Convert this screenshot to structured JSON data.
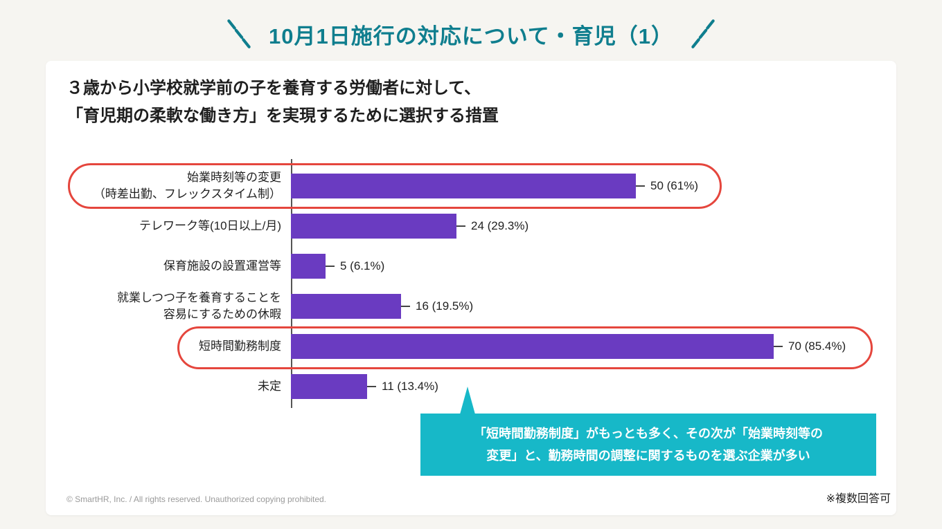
{
  "slide": {
    "title": "10月1日施行の対応について・育児（1）",
    "footnote": "※複数回答可",
    "copyright": "© SmartHR, Inc. / All rights reserved. Unauthorized copying prohibited."
  },
  "heading": {
    "line1": "３歳から小学校就学前の子を養育する労働者に対して、",
    "line2": "「育児期の柔軟な働き方」を実現するために選択する措置"
  },
  "chart_data": {
    "type": "bar",
    "orientation": "horizontal",
    "title": "「育児期の柔軟な働き方」を実現するために選択する措置",
    "categories": [
      "始業時刻等の変更（時差出勤、フレックスタイム制）",
      "テレワーク等(10日以上/月)",
      "保育施設の設置運営等",
      "就業しつつ子を養育することを容易にするための休暇",
      "短時間勤務制度",
      "未定"
    ],
    "category_lines": [
      [
        "始業時刻等の変更",
        "（時差出勤、フレックスタイム制）"
      ],
      [
        "テレワーク等(10日以上/月)"
      ],
      [
        "保育施設の設置運営等"
      ],
      [
        "就業しつつ子を養育することを",
        "容易にするための休暇"
      ],
      [
        "短時間勤務制度"
      ],
      [
        "未定"
      ]
    ],
    "values": [
      50,
      24,
      5,
      16,
      70,
      11
    ],
    "percentages": [
      61,
      29.3,
      6.1,
      19.5,
      85.4,
      13.4
    ],
    "value_labels": [
      "50 (61%)",
      "24 (29.3%)",
      "5 (6.1%)",
      "16 (19.5%)",
      "70 (85.4%)",
      "11 (13.4%)"
    ],
    "max_value": 70,
    "bar_color": "#6a3bc1",
    "highlight_color": "#e5463d",
    "highlighted_rows": [
      0,
      4
    ],
    "legend": "none",
    "grid": "off"
  },
  "callout": {
    "line1": "「短時間勤務制度」がもっとも多く、その次が「始業時刻等の",
    "line2": "変更」と、勤務時間の調整に関するものを選ぶ企業が多い",
    "color": "#17b8c8"
  },
  "colors": {
    "accent_teal": "#0f7e8e",
    "background": "#f6f5f1",
    "card": "#ffffff"
  }
}
